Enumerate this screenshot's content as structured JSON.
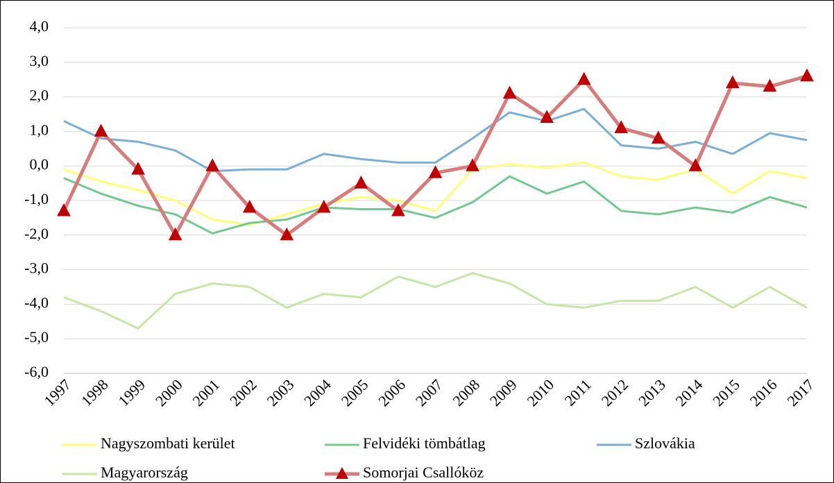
{
  "chart_data": {
    "type": "line",
    "categories": [
      "1997",
      "1998",
      "1999",
      "2000",
      "2001",
      "2002",
      "2003",
      "2004",
      "2005",
      "2006",
      "2007",
      "2008",
      "2009",
      "2010",
      "2011",
      "2012",
      "2013",
      "2014",
      "2015",
      "2016",
      "2017"
    ],
    "ylim": [
      -6,
      4
    ],
    "yticks": [
      {
        "value": -6,
        "label": "-6,0"
      },
      {
        "value": -5,
        "label": "-5,0"
      },
      {
        "value": -4,
        "label": "-4,0"
      },
      {
        "value": -3,
        "label": "-3,0"
      },
      {
        "value": -2,
        "label": "-2,0"
      },
      {
        "value": -1,
        "label": "-1,0"
      },
      {
        "value": 0,
        "label": "0,0"
      },
      {
        "value": 1,
        "label": "1,0"
      },
      {
        "value": 2,
        "label": "2,0"
      },
      {
        "value": 3,
        "label": "3,0"
      },
      {
        "value": 4,
        "label": "4,0"
      }
    ],
    "grid": true,
    "legend": "bottom",
    "series": [
      {
        "name": "Nagyszombati kerület",
        "color": "#ffff70",
        "values": [
          -0.1,
          -0.45,
          -0.7,
          -1.0,
          -1.55,
          -1.7,
          -1.4,
          -1.1,
          -0.9,
          -1.0,
          -1.3,
          -0.1,
          0.05,
          -0.05,
          0.1,
          -0.3,
          -0.4,
          -0.1,
          -0.8,
          -0.15,
          -0.35
        ]
      },
      {
        "name": "Felvidéki tömbátlag",
        "color": "#70c98f",
        "values": [
          -0.35,
          -0.8,
          -1.15,
          -1.4,
          -1.95,
          -1.65,
          -1.55,
          -1.2,
          -1.25,
          -1.25,
          -1.5,
          -1.05,
          -0.3,
          -0.8,
          -0.45,
          -1.3,
          -1.4,
          -1.2,
          -1.35,
          -0.9,
          -1.2
        ]
      },
      {
        "name": "Szlovákia",
        "color": "#78afd8",
        "values": [
          1.3,
          0.8,
          0.7,
          0.45,
          -0.15,
          -0.1,
          -0.1,
          0.35,
          0.2,
          0.1,
          0.1,
          0.8,
          1.55,
          1.3,
          1.65,
          0.6,
          0.5,
          0.7,
          0.35,
          0.95,
          0.75
        ]
      },
      {
        "name": "Magyarország",
        "color": "#c6e6a3",
        "values": [
          -3.8,
          -4.2,
          -4.7,
          -3.7,
          -3.4,
          -3.5,
          -4.1,
          -3.7,
          -3.8,
          -3.2,
          -3.5,
          -3.1,
          -3.4,
          -4.0,
          -4.1,
          -3.9,
          -3.9,
          -3.5,
          -4.1,
          -3.5,
          -4.1
        ]
      },
      {
        "name": "Somorjai Csallóköz",
        "color": "#d97b7b",
        "marker": "triangle",
        "marker_color": "#c00000",
        "values": [
          -1.3,
          1.0,
          -0.1,
          -2.0,
          0.0,
          -1.2,
          -2.0,
          -1.2,
          -0.5,
          -1.3,
          -0.2,
          0.0,
          2.1,
          1.4,
          2.5,
          1.1,
          0.8,
          0.0,
          2.4,
          2.3,
          2.6
        ]
      }
    ]
  }
}
